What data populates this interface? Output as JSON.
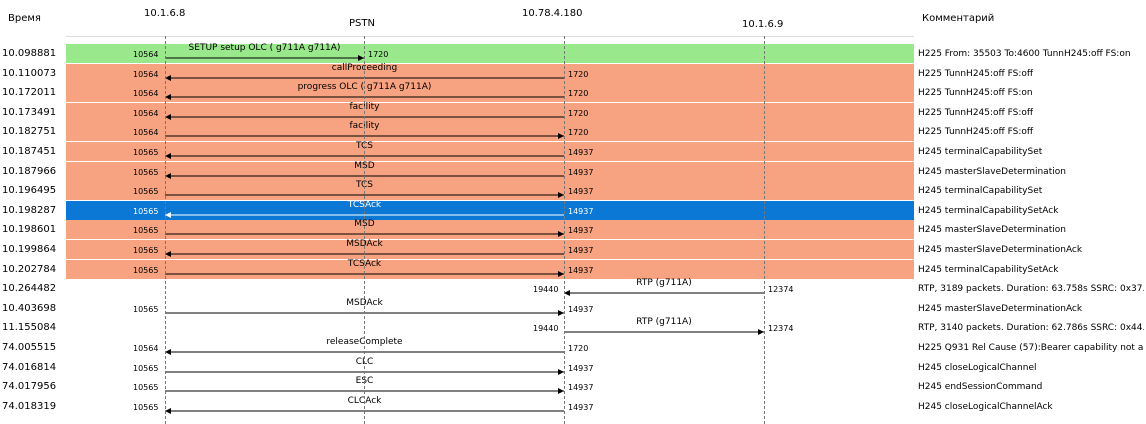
{
  "header": {
    "time_label": "Время",
    "comment_label": "Комментарий",
    "hosts": [
      {
        "ip": "10.1.6.8",
        "name": ""
      },
      {
        "ip": "",
        "name": "PSTN"
      },
      {
        "ip": "10.78.4.180",
        "name": ""
      },
      {
        "ip": "10.1.6.9",
        "name": ""
      }
    ]
  },
  "colors": {
    "green": "#99e88b",
    "salmon": "#f7a280",
    "selected": "#0a78d4"
  },
  "rows": [
    {
      "time": "10.098881",
      "label": "SETUP setup OLC ( g711A g711A)",
      "from": 0,
      "to": 1,
      "src_port": "10564",
      "dst_port": "1720",
      "comment": "H225 From: 35503 To:4600  TunnH245:off FS:on",
      "color": "green"
    },
    {
      "time": "10.110073",
      "label": "callProceeding",
      "from": 2,
      "to": 0,
      "src_port": "10564",
      "dst_port": "1720",
      "comment": "H225 TunnH245:off FS:off",
      "color": "salmon"
    },
    {
      "time": "10.172011",
      "label": "progress OLC ( g711A g711A)",
      "from": 2,
      "to": 0,
      "src_port": "10564",
      "dst_port": "1720",
      "comment": "H225 TunnH245:off FS:on",
      "color": "salmon"
    },
    {
      "time": "10.173491",
      "label": "facility",
      "from": 2,
      "to": 0,
      "src_port": "10564",
      "dst_port": "1720",
      "comment": "H225 TunnH245:off FS:off",
      "color": "salmon"
    },
    {
      "time": "10.182751",
      "label": "facility",
      "from": 0,
      "to": 2,
      "src_port": "10564",
      "dst_port": "1720",
      "comment": "H225 TunnH245:off FS:off",
      "color": "salmon"
    },
    {
      "time": "10.187451",
      "label": "TCS",
      "from": 2,
      "to": 0,
      "src_port": "10565",
      "dst_port": "14937",
      "comment": "H245 terminalCapabilitySet",
      "color": "salmon"
    },
    {
      "time": "10.187966",
      "label": "MSD",
      "from": 2,
      "to": 0,
      "src_port": "10565",
      "dst_port": "14937",
      "comment": "H245 masterSlaveDetermination",
      "color": "salmon"
    },
    {
      "time": "10.196495",
      "label": "TCS",
      "from": 0,
      "to": 2,
      "src_port": "10565",
      "dst_port": "14937",
      "comment": "H245 terminalCapabilitySet",
      "color": "salmon"
    },
    {
      "time": "10.198287",
      "label": "TCSAck",
      "from": 2,
      "to": 0,
      "src_port": "10565",
      "dst_port": "14937",
      "comment": "H245 terminalCapabilitySetAck",
      "color": "selected"
    },
    {
      "time": "10.198601",
      "label": "MSD",
      "from": 0,
      "to": 2,
      "src_port": "10565",
      "dst_port": "14937",
      "comment": "H245 masterSlaveDetermination",
      "color": "salmon"
    },
    {
      "time": "10.199864",
      "label": "MSDAck",
      "from": 2,
      "to": 0,
      "src_port": "10565",
      "dst_port": "14937",
      "comment": "H245 masterSlaveDeterminationAck",
      "color": "salmon"
    },
    {
      "time": "10.202784",
      "label": "TCSAck",
      "from": 0,
      "to": 2,
      "src_port": "10565",
      "dst_port": "14937",
      "comment": "H245 terminalCapabilitySetAck",
      "color": "salmon"
    },
    {
      "time": "10.264482",
      "label": "RTP (g711A)",
      "from": 3,
      "to": 2,
      "src_port": "19440",
      "dst_port": "12374",
      "comment": "RTP, 3189 packets. Duration: 63.758s SSRC: 0x37...",
      "color": "none"
    },
    {
      "time": "10.403698",
      "label": "MSDAck",
      "from": 0,
      "to": 2,
      "src_port": "10565",
      "dst_port": "14937",
      "comment": "H245 masterSlaveDeterminationAck",
      "color": "none"
    },
    {
      "time": "11.155084",
      "label": "RTP (g711A)",
      "from": 2,
      "to": 3,
      "src_port": "19440",
      "dst_port": "12374",
      "comment": "RTP, 3140 packets. Duration: 62.786s SSRC: 0x44...",
      "color": "none"
    },
    {
      "time": "74.005515",
      "label": "releaseComplete",
      "from": 2,
      "to": 0,
      "src_port": "10564",
      "dst_port": "1720",
      "comment": "H225 Q931 Rel Cause (57):Bearer capability not a...",
      "color": "none"
    },
    {
      "time": "74.016814",
      "label": "CLC",
      "from": 0,
      "to": 2,
      "src_port": "10565",
      "dst_port": "14937",
      "comment": "H245 closeLogicalChannel",
      "color": "none"
    },
    {
      "time": "74.017956",
      "label": "ESC",
      "from": 0,
      "to": 2,
      "src_port": "10565",
      "dst_port": "14937",
      "comment": "H245 endSessionCommand",
      "color": "none"
    },
    {
      "time": "74.018319",
      "label": "CLCAck",
      "from": 2,
      "to": 0,
      "src_port": "10565",
      "dst_port": "14937",
      "comment": "H245 closeLogicalChannelAck",
      "color": "none"
    }
  ]
}
